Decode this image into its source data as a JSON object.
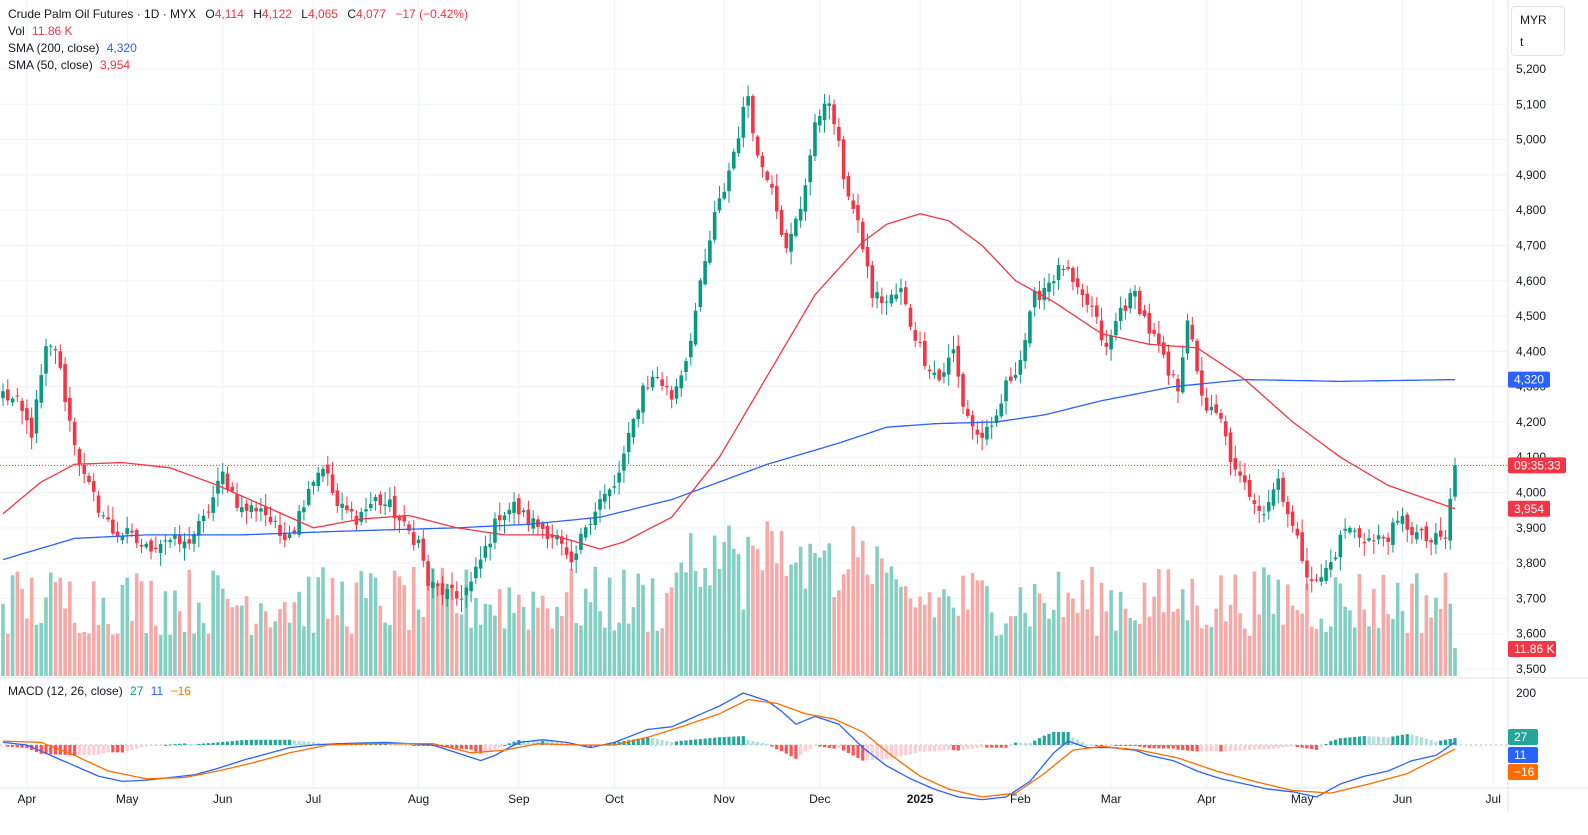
{
  "legend": {
    "symbol": "Crude Palm Oil Futures · 1D · MYX",
    "open_label": "O",
    "open": "4,114",
    "high_label": "H",
    "high": "4,122",
    "low_label": "L",
    "low": "4,065",
    "close_label": "C",
    "close": "4,077",
    "change": "−17 (−0.42%)",
    "vol_label": "Vol",
    "vol": "11.86 K",
    "sma200_label": "SMA (200, close)",
    "sma200": "4,320",
    "sma50_label": "SMA (50, close)",
    "sma50": "3,954"
  },
  "macd_legend": {
    "label": "MACD (12, 26, close)",
    "hist": "27",
    "macd": "11",
    "signal": "−16"
  },
  "unit": {
    "currency": "MYR",
    "unit": "t"
  },
  "badges": {
    "sma200": "4,320",
    "countdown": "09:35:33",
    "sma50": "3,954",
    "volume": "11.86 K",
    "macd_hist": "27",
    "macd": "11",
    "signal": "−16"
  },
  "colors": {
    "up": "#089981",
    "down": "#f23645",
    "up_vol": "#84cfc1",
    "down_vol": "#f7a9a8",
    "sma200": "#2962ff",
    "sma50": "#f23645",
    "macd": "#2962ff",
    "signal": "#ff6d00",
    "grid": "#f0f3fa",
    "axis_text": "#131722"
  },
  "chart_data": {
    "type": "candlestick",
    "title": "Crude Palm Oil Futures · 1D · MYX",
    "price_axis": {
      "ticks": [
        3500,
        3600,
        3700,
        3800,
        3900,
        4000,
        4100,
        4200,
        4300,
        4400,
        4500,
        4600,
        4700,
        4800,
        4900,
        5000,
        5100,
        5200
      ],
      "tick_labels": [
        "3,500",
        "3,600",
        "3,700",
        "3,800",
        "3,900",
        "4,000",
        "4,100",
        "4,200",
        "4,300",
        "4,400",
        "4,500",
        "4,600",
        "4,700",
        "4,800",
        "4,900",
        "5,000",
        "5,100",
        "5,200"
      ],
      "range": [
        3470,
        5235
      ]
    },
    "macd_axis": {
      "ticks": [
        200
      ],
      "tick_labels": [
        "200"
      ]
    },
    "x_labels": [
      {
        "label": "Apr",
        "bar": 5
      },
      {
        "label": "May",
        "bar": 26
      },
      {
        "label": "Jun",
        "bar": 46
      },
      {
        "label": "Jul",
        "bar": 65
      },
      {
        "label": "Aug",
        "bar": 87
      },
      {
        "label": "Sep",
        "bar": 108
      },
      {
        "label": "Oct",
        "bar": 128
      },
      {
        "label": "Nov",
        "bar": 151
      },
      {
        "label": "Dec",
        "bar": 171
      },
      {
        "label": "2025",
        "bar": 192
      },
      {
        "label": "Feb",
        "bar": 213
      },
      {
        "label": "Mar",
        "bar": 232
      },
      {
        "label": "Apr",
        "bar": 252
      },
      {
        "label": "May",
        "bar": 272
      },
      {
        "label": "Jun",
        "bar": 293
      },
      {
        "label": "Jul",
        "bar": 312
      }
    ],
    "last_price": 4077,
    "close_anchors": [
      [
        0,
        4280
      ],
      [
        3,
        4250
      ],
      [
        6,
        4170
      ],
      [
        9,
        4400
      ],
      [
        11,
        4410
      ],
      [
        14,
        4200
      ],
      [
        17,
        4040
      ],
      [
        20,
        3960
      ],
      [
        23,
        3890
      ],
      [
        26,
        3880
      ],
      [
        30,
        3840
      ],
      [
        34,
        3870
      ],
      [
        38,
        3850
      ],
      [
        42,
        3920
      ],
      [
        46,
        4050
      ],
      [
        50,
        3950
      ],
      [
        54,
        3960
      ],
      [
        58,
        3880
      ],
      [
        61,
        3900
      ],
      [
        64,
        4020
      ],
      [
        67,
        4080
      ],
      [
        70,
        3960
      ],
      [
        74,
        3930
      ],
      [
        78,
        3980
      ],
      [
        81,
        3960
      ],
      [
        84,
        3900
      ],
      [
        87,
        3860
      ],
      [
        89,
        3740
      ],
      [
        92,
        3720
      ],
      [
        95,
        3700
      ],
      [
        98,
        3740
      ],
      [
        101,
        3840
      ],
      [
        104,
        3940
      ],
      [
        107,
        3960
      ],
      [
        110,
        3920
      ],
      [
        113,
        3900
      ],
      [
        116,
        3870
      ],
      [
        119,
        3780
      ],
      [
        122,
        3910
      ],
      [
        125,
        3980
      ],
      [
        128,
        4010
      ],
      [
        131,
        4150
      ],
      [
        134,
        4300
      ],
      [
        137,
        4330
      ],
      [
        140,
        4270
      ],
      [
        143,
        4380
      ],
      [
        146,
        4580
      ],
      [
        149,
        4780
      ],
      [
        151,
        4860
      ],
      [
        154,
        5020
      ],
      [
        156,
        5130
      ],
      [
        158,
        4950
      ],
      [
        161,
        4880
      ],
      [
        164,
        4680
      ],
      [
        167,
        4810
      ],
      [
        170,
        5030
      ],
      [
        172,
        5120
      ],
      [
        174,
        5050
      ],
      [
        176,
        4900
      ],
      [
        178,
        4800
      ],
      [
        180,
        4700
      ],
      [
        182,
        4560
      ],
      [
        185,
        4540
      ],
      [
        188,
        4570
      ],
      [
        190,
        4480
      ],
      [
        193,
        4380
      ],
      [
        196,
        4320
      ],
      [
        199,
        4400
      ],
      [
        201,
        4250
      ],
      [
        204,
        4160
      ],
      [
        207,
        4170
      ],
      [
        210,
        4300
      ],
      [
        213,
        4380
      ],
      [
        216,
        4550
      ],
      [
        219,
        4600
      ],
      [
        222,
        4640
      ],
      [
        225,
        4560
      ],
      [
        228,
        4520
      ],
      [
        231,
        4400
      ],
      [
        234,
        4520
      ],
      [
        237,
        4560
      ],
      [
        240,
        4460
      ],
      [
        242,
        4410
      ],
      [
        244,
        4330
      ],
      [
        246,
        4300
      ],
      [
        248,
        4500
      ],
      [
        250,
        4330
      ],
      [
        252,
        4240
      ],
      [
        255,
        4200
      ],
      [
        258,
        4050
      ],
      [
        261,
        4000
      ],
      [
        264,
        3950
      ],
      [
        267,
        4040
      ],
      [
        270,
        3900
      ],
      [
        273,
        3780
      ],
      [
        275,
        3740
      ],
      [
        278,
        3800
      ],
      [
        281,
        3900
      ],
      [
        284,
        3880
      ],
      [
        287,
        3860
      ],
      [
        290,
        3880
      ],
      [
        293,
        3920
      ],
      [
        296,
        3880
      ],
      [
        299,
        3860
      ],
      [
        302,
        3870
      ],
      [
        304,
        4077
      ]
    ],
    "sma200_anchors": [
      [
        0,
        3810
      ],
      [
        15,
        3870
      ],
      [
        30,
        3880
      ],
      [
        50,
        3880
      ],
      [
        70,
        3890
      ],
      [
        95,
        3900
      ],
      [
        110,
        3910
      ],
      [
        125,
        3930
      ],
      [
        140,
        3980
      ],
      [
        150,
        4030
      ],
      [
        160,
        4080
      ],
      [
        175,
        4140
      ],
      [
        185,
        4185
      ],
      [
        195,
        4195
      ],
      [
        208,
        4200
      ],
      [
        218,
        4220
      ],
      [
        230,
        4260
      ],
      [
        245,
        4300
      ],
      [
        260,
        4320
      ],
      [
        280,
        4315
      ],
      [
        304,
        4320
      ]
    ],
    "sma50_anchors": [
      [
        0,
        3940
      ],
      [
        8,
        4030
      ],
      [
        15,
        4080
      ],
      [
        25,
        4085
      ],
      [
        35,
        4070
      ],
      [
        45,
        4020
      ],
      [
        55,
        3960
      ],
      [
        65,
        3900
      ],
      [
        75,
        3925
      ],
      [
        85,
        3935
      ],
      [
        95,
        3900
      ],
      [
        105,
        3880
      ],
      [
        115,
        3880
      ],
      [
        125,
        3840
      ],
      [
        130,
        3860
      ],
      [
        140,
        3930
      ],
      [
        150,
        4100
      ],
      [
        160,
        4330
      ],
      [
        170,
        4560
      ],
      [
        180,
        4710
      ],
      [
        185,
        4760
      ],
      [
        192,
        4790
      ],
      [
        198,
        4770
      ],
      [
        205,
        4700
      ],
      [
        212,
        4600
      ],
      [
        220,
        4540
      ],
      [
        230,
        4450
      ],
      [
        240,
        4420
      ],
      [
        250,
        4410
      ],
      [
        260,
        4320
      ],
      [
        270,
        4200
      ],
      [
        280,
        4100
      ],
      [
        290,
        4020
      ],
      [
        304,
        3954
      ]
    ],
    "macd_anchors": [
      [
        0,
        10
      ],
      [
        5,
        0
      ],
      [
        10,
        -40
      ],
      [
        15,
        -80
      ],
      [
        20,
        -120
      ],
      [
        25,
        -140
      ],
      [
        30,
        -135
      ],
      [
        35,
        -125
      ],
      [
        40,
        -115
      ],
      [
        45,
        -90
      ],
      [
        50,
        -60
      ],
      [
        55,
        -35
      ],
      [
        60,
        -10
      ],
      [
        65,
        0
      ],
      [
        70,
        5
      ],
      [
        80,
        10
      ],
      [
        90,
        0
      ],
      [
        95,
        -30
      ],
      [
        100,
        -60
      ],
      [
        103,
        -40
      ],
      [
        108,
        10
      ],
      [
        113,
        20
      ],
      [
        118,
        10
      ],
      [
        123,
        -10
      ],
      [
        128,
        10
      ],
      [
        135,
        60
      ],
      [
        140,
        70
      ],
      [
        145,
        110
      ],
      [
        150,
        150
      ],
      [
        155,
        200
      ],
      [
        160,
        170
      ],
      [
        163,
        130
      ],
      [
        166,
        80
      ],
      [
        170,
        110
      ],
      [
        175,
        80
      ],
      [
        180,
        -10
      ],
      [
        185,
        -80
      ],
      [
        190,
        -130
      ],
      [
        195,
        -170
      ],
      [
        200,
        -200
      ],
      [
        205,
        -210
      ],
      [
        210,
        -200
      ],
      [
        215,
        -140
      ],
      [
        220,
        -30
      ],
      [
        223,
        15
      ],
      [
        227,
        -10
      ],
      [
        232,
        -10
      ],
      [
        237,
        -20
      ],
      [
        240,
        -40
      ],
      [
        245,
        -60
      ],
      [
        250,
        -100
      ],
      [
        255,
        -130
      ],
      [
        260,
        -150
      ],
      [
        265,
        -170
      ],
      [
        270,
        -180
      ],
      [
        275,
        -200
      ],
      [
        280,
        -150
      ],
      [
        285,
        -120
      ],
      [
        290,
        -100
      ],
      [
        295,
        -60
      ],
      [
        300,
        -40
      ],
      [
        304,
        11
      ]
    ],
    "signal_anchors": [
      [
        0,
        15
      ],
      [
        8,
        10
      ],
      [
        15,
        -40
      ],
      [
        22,
        -100
      ],
      [
        30,
        -130
      ],
      [
        38,
        -125
      ],
      [
        45,
        -100
      ],
      [
        52,
        -70
      ],
      [
        60,
        -30
      ],
      [
        68,
        0
      ],
      [
        78,
        5
      ],
      [
        90,
        5
      ],
      [
        98,
        -30
      ],
      [
        105,
        -20
      ],
      [
        112,
        5
      ],
      [
        120,
        0
      ],
      [
        128,
        0
      ],
      [
        135,
        30
      ],
      [
        142,
        70
      ],
      [
        150,
        120
      ],
      [
        156,
        175
      ],
      [
        162,
        160
      ],
      [
        168,
        120
      ],
      [
        174,
        100
      ],
      [
        180,
        50
      ],
      [
        186,
        -40
      ],
      [
        192,
        -120
      ],
      [
        198,
        -170
      ],
      [
        205,
        -200
      ],
      [
        212,
        -185
      ],
      [
        218,
        -110
      ],
      [
        224,
        -20
      ],
      [
        230,
        -5
      ],
      [
        238,
        -20
      ],
      [
        246,
        -50
      ],
      [
        254,
        -100
      ],
      [
        262,
        -140
      ],
      [
        270,
        -175
      ],
      [
        278,
        -185
      ],
      [
        286,
        -150
      ],
      [
        294,
        -110
      ],
      [
        304,
        -16
      ]
    ]
  }
}
